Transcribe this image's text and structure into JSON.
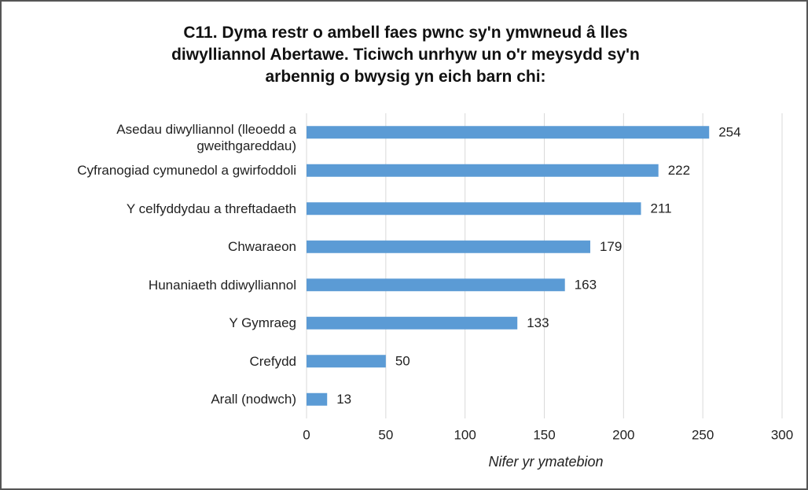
{
  "chart_data": {
    "type": "bar",
    "orientation": "horizontal",
    "title": "C11. Dyma restr o ambell faes pwnc sy'n ymwneud â lles\ndiwylliannol Abertawe. Ticiwch unrhyw un o'r meysydd sy'n\narbennig o bwysig yn eich barn chi:",
    "categories": [
      "Asedau diwylliannol (lleoedd a gweithgareddau)",
      "Cyfranogiad cymunedol a gwirfoddoli",
      "Y celfyddydau a threftadaeth",
      "Chwaraeon",
      "Hunaniaeth ddiwylliannol",
      "Y Gymraeg",
      "Crefydd",
      "Arall (nodwch)"
    ],
    "values": [
      254,
      222,
      211,
      179,
      163,
      133,
      50,
      13
    ],
    "color": "#5b9bd5",
    "xlabel": "Nifer yr ymatebion",
    "xlim": [
      0,
      300
    ],
    "xticks": [
      0,
      50,
      100,
      150,
      200,
      250,
      300
    ],
    "grid": true
  }
}
